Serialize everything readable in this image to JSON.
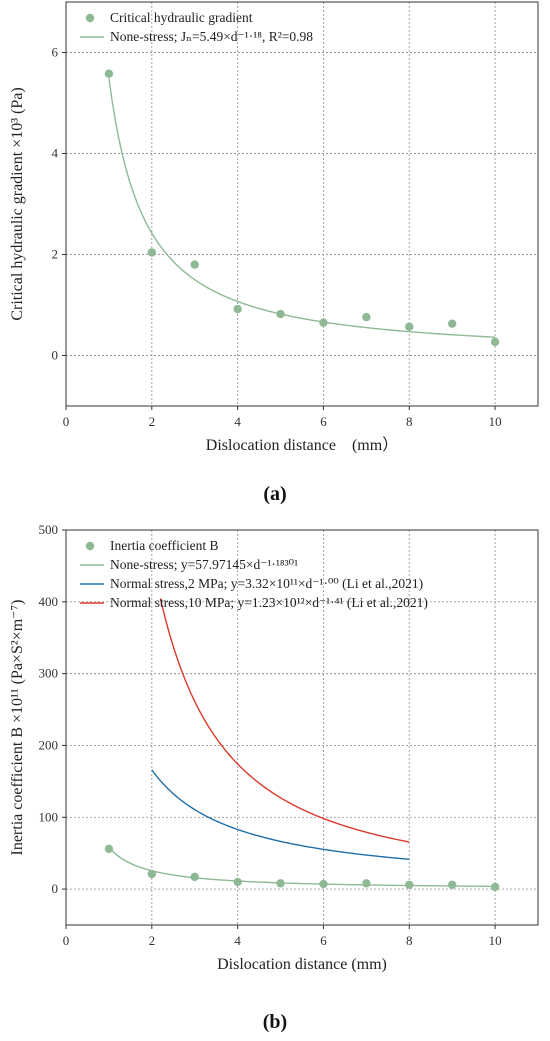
{
  "chart_data": [
    {
      "type": "scatter",
      "caption": "(a)",
      "xlabel": "Dislocation distance　(mm）",
      "ylabel": "Critical hydraulic gradient ×10³ (Pa)",
      "xlim": [
        0,
        11
      ],
      "ylim": [
        -1,
        7
      ],
      "xticks": [
        0,
        2,
        4,
        6,
        8,
        10
      ],
      "yticks": [
        0,
        2,
        4,
        6
      ],
      "grid": "dotted",
      "legend_position": "top-left",
      "scatter_series": [
        {
          "name": "Critical hydraulic gradient",
          "color": "#8fb995",
          "x": [
            1,
            2,
            3,
            4,
            5,
            6,
            7,
            8,
            9,
            10
          ],
          "y": [
            5.58,
            2.04,
            1.8,
            0.92,
            0.82,
            0.65,
            0.76,
            0.57,
            0.63,
            0.27
          ]
        }
      ],
      "fit_series": [
        {
          "name": "None-stress; Jₙ=5.49×d⁻¹·¹⁸, R²=0.98",
          "color": "#8fb995",
          "coef": 5.49,
          "exp": -1.18,
          "x_range": [
            1,
            10
          ]
        }
      ]
    },
    {
      "type": "scatter",
      "caption": "(b)",
      "xlabel": "Dislocation distance (mm)",
      "ylabel": "Inertia coefficient B ×10¹¹ (Pa×S²×m⁻⁷)",
      "xlim": [
        0,
        11
      ],
      "ylim": [
        -50,
        500
      ],
      "xticks": [
        0,
        2,
        4,
        6,
        8,
        10
      ],
      "yticks": [
        0,
        100,
        200,
        300,
        400,
        500
      ],
      "grid": "dotted",
      "legend_position": "top-left",
      "scatter_series": [
        {
          "name": "Inertia coefficient B",
          "color": "#8fb995",
          "x": [
            1,
            2,
            3,
            4,
            5,
            6,
            7,
            8,
            9,
            10
          ],
          "y": [
            56,
            21,
            17,
            10,
            8,
            7,
            8,
            6,
            6,
            3
          ]
        }
      ],
      "fit_series": [
        {
          "name": "None-stress; y=57.97145×d⁻¹·¹⁸³⁰¹",
          "color": "#8fb995",
          "coef": 57.97145,
          "exp": -1.18301,
          "x_range": [
            1,
            10
          ]
        },
        {
          "name": "Normal stress,2 MPa; y=3.32×10¹¹×d⁻¹·⁰⁰ (Li et al.,2021)",
          "color": "#1f6fa8",
          "coef": 332,
          "exp": -1.0,
          "x_range": [
            2,
            8
          ]
        },
        {
          "name": "Normal stress,10 MPa; y=1.23×10¹²×d⁻¹·⁴¹ (Li et al.,2021)",
          "color": "#d93a2b",
          "coef": 1230,
          "exp": -1.41,
          "x_range": [
            2.2,
            8
          ]
        }
      ]
    }
  ]
}
